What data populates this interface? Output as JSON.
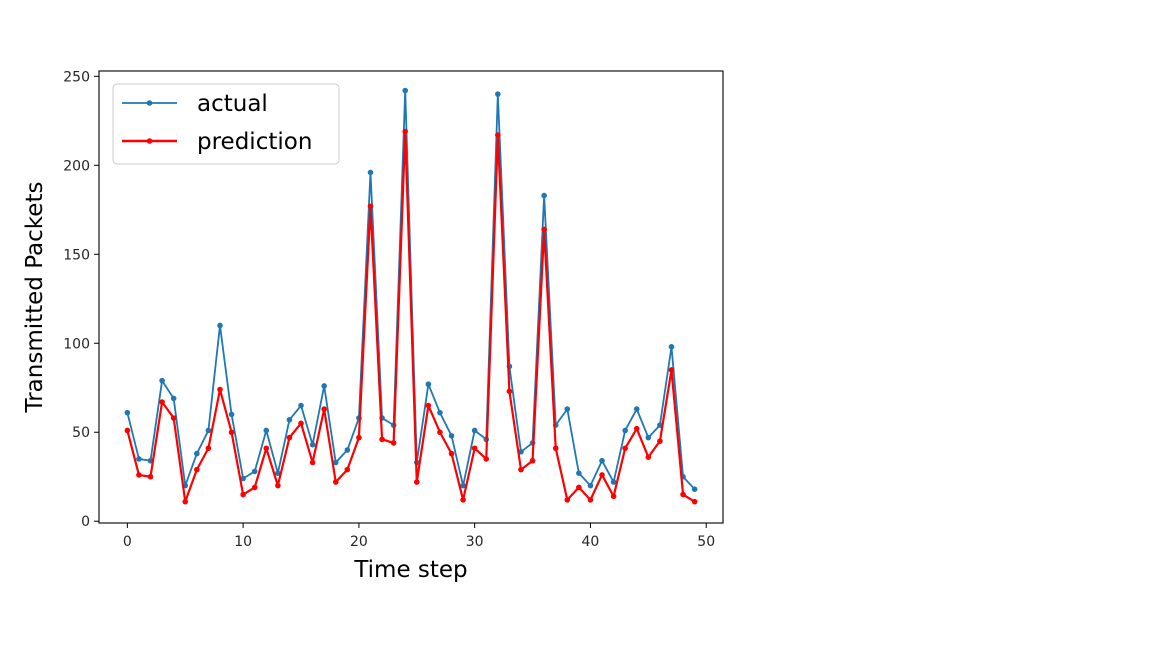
{
  "chart_data": {
    "type": "line",
    "title": "",
    "xlabel": "Time step",
    "ylabel": "Transmitted Packets",
    "xlim": [
      -2.45,
      51.45
    ],
    "ylim": [
      -1,
      253
    ],
    "xticks": [
      0,
      10,
      20,
      30,
      40,
      50
    ],
    "yticks": [
      0,
      50,
      100,
      150,
      200,
      250
    ],
    "grid": false,
    "legend_position": "upper-left",
    "x": [
      0,
      1,
      2,
      3,
      4,
      5,
      6,
      7,
      8,
      9,
      10,
      11,
      12,
      13,
      14,
      15,
      16,
      17,
      18,
      19,
      20,
      21,
      22,
      23,
      24,
      25,
      26,
      27,
      28,
      29,
      30,
      31,
      32,
      33,
      34,
      35,
      36,
      37,
      38,
      39,
      40,
      41,
      42,
      43,
      44,
      45,
      46,
      47,
      48,
      49
    ],
    "series": [
      {
        "name": "actual",
        "color": "#1f77b4",
        "values": [
          61,
          35,
          34,
          79,
          69,
          20,
          38,
          51,
          110,
          60,
          24,
          28,
          51,
          27,
          57,
          65,
          43,
          76,
          33,
          40,
          58,
          196,
          58,
          54,
          242,
          33,
          77,
          61,
          48,
          20,
          51,
          46,
          240,
          87,
          39,
          44,
          183,
          54,
          63,
          27,
          20,
          34,
          22,
          51,
          63,
          47,
          54,
          98,
          25,
          18
        ]
      },
      {
        "name": "prediction",
        "color": "#ff0000",
        "values": [
          51,
          26,
          25,
          67,
          58,
          11,
          29,
          41,
          74,
          50,
          15,
          19,
          41,
          20,
          47,
          55,
          33,
          63,
          22,
          29,
          47,
          177,
          46,
          44,
          219,
          22,
          65,
          50,
          38,
          12,
          41,
          35,
          217,
          73,
          29,
          34,
          164,
          41,
          12,
          19,
          12,
          26,
          14,
          41,
          52,
          36,
          45,
          85,
          15,
          11
        ]
      }
    ]
  }
}
